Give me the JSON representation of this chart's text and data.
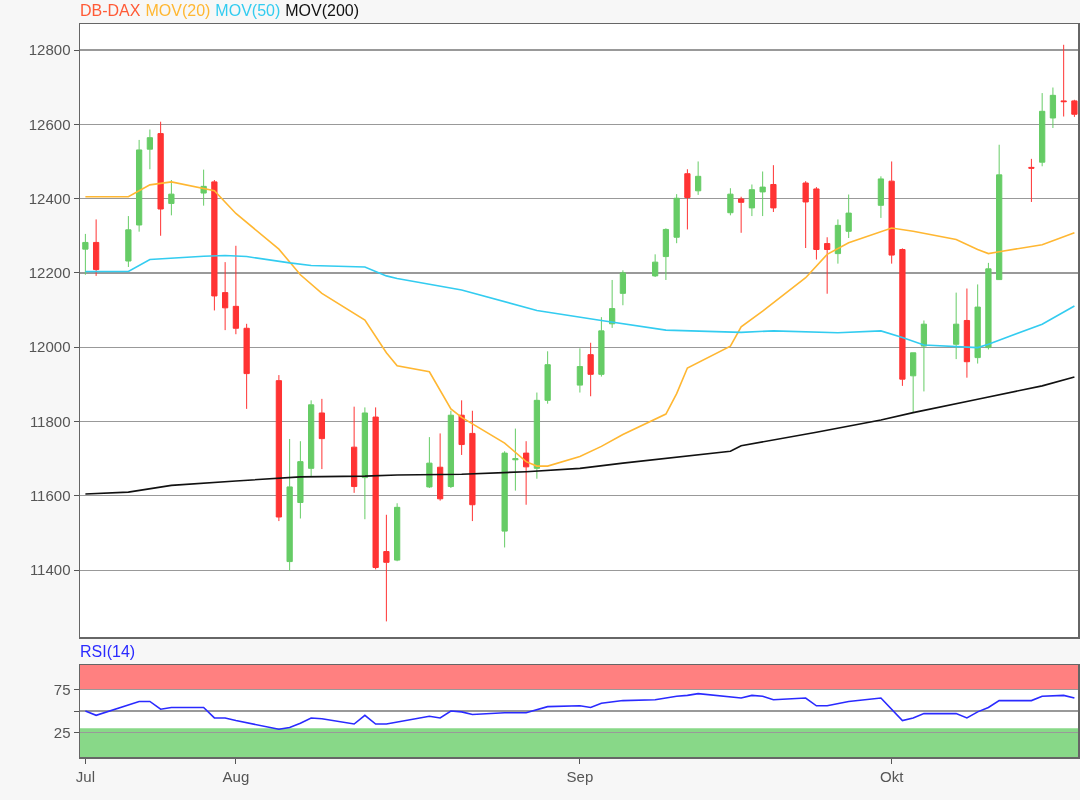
{
  "chart_data": [
    {
      "type": "candlestick",
      "xlim": [
        "--07-17T12:00",
        "--10-18T08:00"
      ],
      "ylim": [
        11220,
        12870
      ],
      "yticks": [
        11400,
        11600,
        11800,
        12000,
        12200,
        12400,
        12600,
        12800
      ],
      "grid": "y",
      "legend": "top left",
      "tick_labels": "y",
      "series": [
        {
          "name": "DB-DAX",
          "color": "#ff5a36",
          "colors": [
            "#66cc66",
            "#ff3333",
            "#66cc66",
            "#66cc66",
            "#66cc66",
            "#ff3333",
            "#66cc66",
            "#66cc66",
            "#ff3333",
            "#ff3333",
            "#ff3333",
            "#ff3333",
            "#ff3333",
            "#66cc66",
            "#66cc66",
            "#66cc66",
            "#ff3333",
            "#ff3333",
            "#66cc66",
            "#ff3333",
            "#ff3333",
            "#66cc66",
            "#66cc66",
            "#ff3333",
            "#66cc66",
            "#ff3333",
            "#ff3333",
            "#66cc66",
            "#66cc66",
            "#ff3333",
            "#66cc66",
            "#66cc66",
            "#66cc66",
            "#ff3333",
            "#66cc66",
            "#66cc66",
            "#66cc66",
            "#66cc66",
            "#66cc66",
            "#66cc66",
            "#ff3333",
            "#66cc66",
            "#66cc66",
            "#ff3333",
            "#66cc66",
            "#66cc66",
            "#ff3333",
            "#ff3333",
            "#ff3333",
            "#ff3333",
            "#66cc66",
            "#66cc66",
            "#66cc66",
            "#ff3333",
            "#ff3333",
            "#66cc66",
            "#66cc66",
            "#66cc66",
            "#ff3333",
            "#66cc66",
            "#66cc66",
            "#66cc66",
            "#ff3333",
            "#66cc66",
            "#66cc66",
            "#ff3333",
            "#ff3333"
          ],
          "x": [
            "--07-18",
            "--07-19",
            "--07-22",
            "--07-23",
            "--07-24",
            "--07-25",
            "--07-26",
            "--07-29",
            "--07-30",
            "--07-31",
            "--08-01",
            "--08-02",
            "--08-05",
            "--08-06",
            "--08-07",
            "--08-08",
            "--08-09",
            "--08-12",
            "--08-13",
            "--08-14",
            "--08-15",
            "--08-16",
            "--08-19",
            "--08-20",
            "--08-21",
            "--08-22",
            "--08-23",
            "--08-26",
            "--08-27",
            "--08-28",
            "--08-29",
            "--08-30",
            "--09-02",
            "--09-03",
            "--09-04",
            "--09-05",
            "--09-06",
            "--09-09",
            "--09-10",
            "--09-11",
            "--09-12",
            "--09-13",
            "--09-16",
            "--09-17",
            "--09-18",
            "--09-19",
            "--09-20",
            "--09-23",
            "--09-24",
            "--09-25",
            "--09-26",
            "--09-27",
            "--09-30",
            "--10-01",
            "--10-02",
            "--10-03",
            "--10-04",
            "--10-07",
            "--10-08",
            "--10-09",
            "--10-10",
            "--10-11",
            "--10-14",
            "--10-15",
            "--10-16",
            "--10-17",
            "--10-18"
          ],
          "ohlc": [
            [
              12264,
              12305,
              12195,
              12282
            ],
            [
              12282,
              12344,
              12192,
              12209
            ],
            [
              12232,
              12353,
              12216,
              12316
            ],
            [
              12329,
              12558,
              12311,
              12531
            ],
            [
              12533,
              12586,
              12479,
              12564
            ],
            [
              12575,
              12607,
              12300,
              12372
            ],
            [
              12387,
              12450,
              12355,
              12412
            ],
            [
              12415,
              12478,
              12381,
              12433
            ],
            [
              12445,
              12450,
              12099,
              12138
            ],
            [
              12147,
              12229,
              12046,
              12106
            ],
            [
              12110,
              12273,
              12035,
              12051
            ],
            [
              12051,
              12063,
              11834,
              11929
            ],
            [
              11910,
              11925,
              11532,
              11543
            ],
            [
              11423,
              11753,
              11399,
              11624
            ],
            [
              11582,
              11747,
              11539,
              11692
            ],
            [
              11674,
              11857,
              11653,
              11845
            ],
            [
              11823,
              11861,
              11672,
              11754
            ],
            [
              11731,
              11840,
              11608,
              11625
            ],
            [
              11649,
              11838,
              11537,
              11823
            ],
            [
              11812,
              11838,
              11402,
              11407
            ],
            [
              11450,
              11549,
              11262,
              11421
            ],
            [
              11427,
              11580,
              11424,
              11569
            ],
            [
              11624,
              11758,
              11621,
              11688
            ],
            [
              11677,
              11768,
              11587,
              11592
            ],
            [
              11625,
              11829,
              11621,
              11817
            ],
            [
              11817,
              11857,
              11710,
              11738
            ],
            [
              11768,
              11829,
              11532,
              11576
            ],
            [
              11505,
              11720,
              11461,
              11715
            ],
            [
              11697,
              11781,
              11614,
              11700
            ],
            [
              11715,
              11747,
              11576,
              11678
            ],
            [
              11674,
              11878,
              11646,
              11857
            ],
            [
              11857,
              11989,
              11848,
              11953
            ],
            [
              11898,
              11997,
              11878,
              11948
            ],
            [
              11980,
              12012,
              11868,
              11927
            ],
            [
              11927,
              12081,
              11921,
              12044
            ],
            [
              12063,
              12181,
              12052,
              12104
            ],
            [
              12145,
              12207,
              12113,
              12200
            ],
            [
              12192,
              12250,
              12189,
              12229
            ],
            [
              12244,
              12320,
              12181,
              12317
            ],
            [
              12296,
              12412,
              12280,
              12401
            ],
            [
              12467,
              12479,
              12317,
              12403
            ],
            [
              12421,
              12500,
              12410,
              12460
            ],
            [
              12362,
              12428,
              12355,
              12412
            ],
            [
              12399,
              12405,
              12308,
              12390
            ],
            [
              12375,
              12438,
              12353,
              12424
            ],
            [
              12418,
              12473,
              12353,
              12431
            ],
            [
              12438,
              12490,
              12364,
              12375
            ],
            [
              12442,
              12447,
              12267,
              12391
            ],
            [
              12426,
              12431,
              12236,
              12263
            ],
            [
              12279,
              12296,
              12144,
              12263
            ],
            [
              12252,
              12344,
              12225,
              12328
            ],
            [
              12312,
              12411,
              12294,
              12361
            ],
            [
              12382,
              12460,
              12348,
              12453
            ],
            [
              12447,
              12500,
              12225,
              12248
            ],
            [
              12263,
              12266,
              11896,
              11914
            ],
            [
              11923,
              11985,
              11824,
              11985
            ],
            [
              12003,
              12072,
              11881,
              12062
            ],
            [
              12008,
              12147,
              11968,
              12062
            ],
            [
              12072,
              12158,
              11918,
              11961
            ],
            [
              11972,
              12169,
              11956,
              12108
            ],
            [
              11999,
              12227,
              11994,
              12211
            ],
            [
              12182,
              12545,
              12181,
              12464
            ],
            [
              12484,
              12507,
              12391,
              12482
            ],
            [
              12498,
              12684,
              12487,
              12635
            ],
            [
              12617,
              12699,
              12590,
              12678
            ],
            [
              12663,
              12814,
              12621,
              12661
            ],
            [
              12663,
              12666,
              12620,
              12627
            ]
          ]
        },
        {
          "name": "MOV(20)",
          "type": "line",
          "color": "#ffb732",
          "x": [
            "--07-18",
            "--07-22",
            "--07-24",
            "--07-26",
            "--07-30",
            "--08-01",
            "--08-05",
            "--08-07",
            "--08-09",
            "--08-13",
            "--08-15",
            "--08-16",
            "--08-19",
            "--08-21",
            "--08-22",
            "--08-26",
            "--08-28",
            "--08-29",
            "--08-30",
            "--09-02",
            "--09-04",
            "--09-06",
            "--09-10",
            "--09-11",
            "--09-12",
            "--09-16",
            "--09-17",
            "--09-19",
            "--09-23",
            "--09-25",
            "--09-27",
            "--10-01",
            "--10-03",
            "--10-07",
            "--10-09",
            "--10-10",
            "--10-11",
            "--10-15",
            "--10-18"
          ],
          "values": [
            12405,
            12405,
            12437,
            12445,
            12421,
            12360,
            12264,
            12195,
            12145,
            12073,
            11985,
            11950,
            11934,
            11834,
            11811,
            11742,
            11692,
            11680,
            11680,
            11706,
            11733,
            11765,
            11820,
            11875,
            11944,
            12003,
            12055,
            12097,
            12187,
            12250,
            12281,
            12321,
            12312,
            12290,
            12263,
            12252,
            12257,
            12276,
            12308
          ]
        },
        {
          "name": "MOV(50)",
          "type": "line",
          "color": "#33ccf0",
          "x": [
            "--07-18",
            "--07-22",
            "--07-24",
            "--07-29",
            "--07-31",
            "--08-02",
            "--08-06",
            "--08-08",
            "--08-13",
            "--08-15",
            "--08-16",
            "--08-22",
            "--08-29",
            "--09-04",
            "--09-10",
            "--09-17",
            "--09-20",
            "--09-26",
            "--09-30",
            "--10-02",
            "--10-04",
            "--10-09",
            "--10-10",
            "--10-15",
            "--10-18"
          ],
          "values": [
            12204,
            12204,
            12236,
            12245,
            12247,
            12244,
            12227,
            12220,
            12216,
            12192,
            12185,
            12154,
            12099,
            12072,
            12046,
            12040,
            12044,
            12039,
            12044,
            12026,
            12006,
            11999,
            12008,
            12062,
            12111
          ]
        },
        {
          "name": "MOV(200)",
          "type": "line",
          "color": "#111111",
          "x": [
            "--07-18",
            "--07-22",
            "--07-26",
            "--08-01",
            "--08-07",
            "--08-13",
            "--08-16",
            "--08-22",
            "--08-28",
            "--09-02",
            "--09-06",
            "--09-16",
            "--09-17",
            "--09-24",
            "--09-30",
            "--10-03",
            "--10-09",
            "--10-15",
            "--10-18"
          ],
          "values": [
            11605,
            11610,
            11628,
            11640,
            11651,
            11653,
            11656,
            11658,
            11665,
            11674,
            11688,
            11720,
            11735,
            11771,
            11804,
            11824,
            11860,
            11896,
            11920
          ]
        }
      ]
    },
    {
      "type": "line",
      "xlim": [
        "--07-17T12:00",
        "--10-18T08:00"
      ],
      "xticks": [
        {
          "value": "--07-18",
          "label": "Jul"
        },
        {
          "value": "--08-01",
          "label": "Aug"
        },
        {
          "value": "--09-02",
          "label": "Sep"
        },
        {
          "value": "--10-01",
          "label": "Okt"
        }
      ],
      "ylim": [
        -3,
        103
      ],
      "yticks": [
        25,
        {
          "value": 50,
          "label": null
        },
        75
      ],
      "grid": "y",
      "legend": "top left",
      "bands": [
        {
          "axis": "y",
          "from": 75,
          "to": 103,
          "color": "#ff8080"
        },
        {
          "axis": "y",
          "from": -3,
          "to": 30,
          "color": "#88d888"
        }
      ],
      "series": [
        {
          "name": "RSI(14)",
          "color": "#2a2aff",
          "x": [
            "--07-18",
            "--07-19",
            "--07-23",
            "--07-24",
            "--07-25",
            "--07-26",
            "--07-29",
            "--07-30",
            "--07-31",
            "--08-01",
            "--08-05",
            "--08-06",
            "--08-07",
            "--08-08",
            "--08-09",
            "--08-12",
            "--08-13",
            "--08-14",
            "--08-15",
            "--08-19",
            "--08-20",
            "--08-21",
            "--08-22",
            "--08-23",
            "--08-26",
            "--08-28",
            "--08-30",
            "--09-02",
            "--09-03",
            "--09-04",
            "--09-06",
            "--09-09",
            "--09-11",
            "--09-12",
            "--09-13",
            "--09-17",
            "--09-18",
            "--09-19",
            "--09-20",
            "--09-23",
            "--09-24",
            "--09-25",
            "--09-27",
            "--09-30",
            "--10-02",
            "--10-03",
            "--10-04",
            "--10-07",
            "--10-08",
            "--10-09",
            "--10-10",
            "--10-11",
            "--10-14",
            "--10-15",
            "--10-17",
            "--10-18"
          ],
          "values": [
            50,
            45,
            61,
            61,
            52,
            54,
            54,
            42,
            42,
            39,
            29,
            31,
            36,
            42,
            41,
            35,
            45,
            35,
            35,
            44,
            42,
            50,
            49,
            46,
            48,
            48,
            55,
            56,
            54,
            59,
            62,
            63,
            67,
            68,
            70,
            65,
            68,
            67,
            63,
            65,
            56,
            56,
            61,
            65,
            39,
            42,
            47,
            47,
            42,
            49,
            54,
            62,
            62,
            67,
            68,
            65
          ]
        }
      ]
    }
  ]
}
